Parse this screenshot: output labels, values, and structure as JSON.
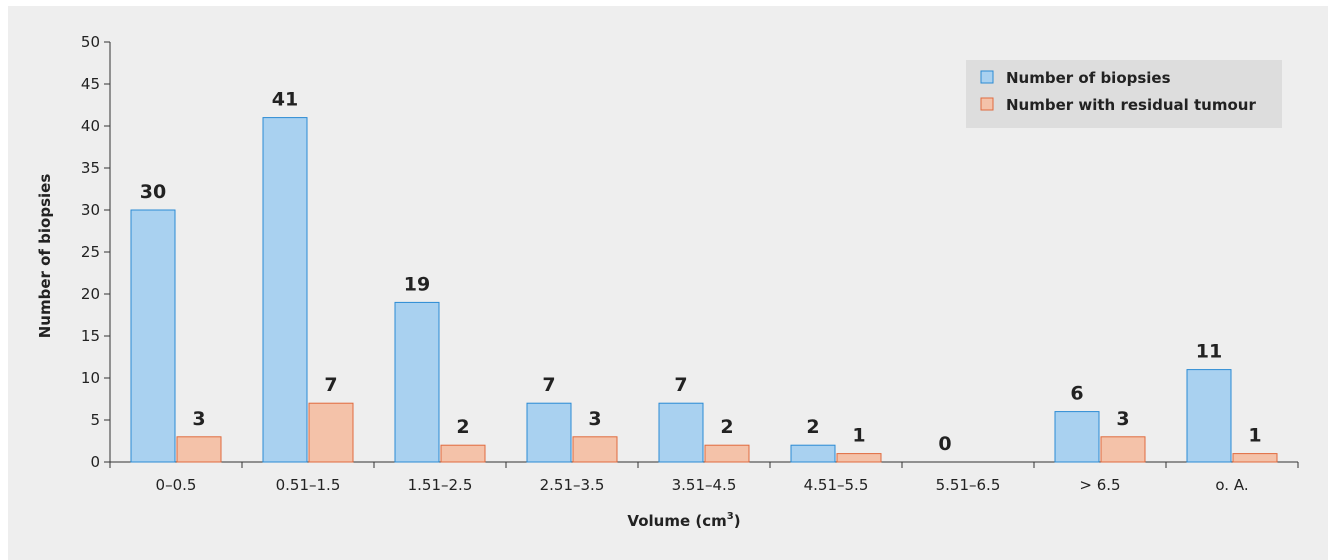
{
  "chart_data": {
    "type": "bar",
    "title": "",
    "xlabel": "Volume (cm",
    "xlabel_superscript": "3",
    "xlabel_suffix": ")",
    "ylabel": "Number of biopsies",
    "ylim": [
      0,
      50
    ],
    "yticks": [
      0,
      5,
      10,
      15,
      20,
      25,
      30,
      35,
      40,
      45,
      50
    ],
    "categories": [
      "0–0.5",
      "0.51–1.5",
      "1.51–2.5",
      "2.51–3.5",
      "3.51–4.5",
      "4.51–5.5",
      "5.51–6.5",
      "> 6.5",
      "o. A."
    ],
    "series": [
      {
        "name": "Number of biopsies",
        "values": [
          30,
          41,
          19,
          7,
          7,
          2,
          0,
          6,
          11
        ],
        "color": "#a9d1f0",
        "stroke": "#2a8ad4"
      },
      {
        "name": "Number with residual tumour",
        "values": [
          3,
          7,
          2,
          3,
          2,
          1,
          null,
          3,
          1
        ],
        "color": "#f4c2a9",
        "stroke": "#e06a3e"
      }
    ],
    "grid": false,
    "legend_position": "top-right",
    "legend_background": "#dddddd"
  }
}
